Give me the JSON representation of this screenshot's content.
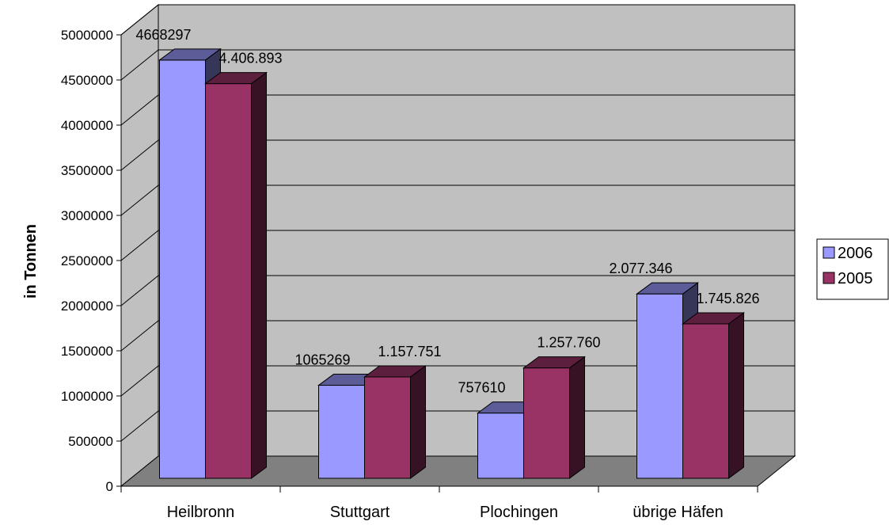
{
  "chart_data": {
    "type": "bar",
    "three_d": true,
    "categories": [
      "Heilbronn",
      "Stuttgart",
      "Plochingen",
      "übrige Häfen"
    ],
    "series": [
      {
        "name": "2006",
        "color": "#9999ff",
        "values": [
          4668297,
          1065269,
          757610,
          2077346
        ],
        "data_labels": [
          "4668297",
          "1065269",
          "757610",
          "2.077.346"
        ]
      },
      {
        "name": "2005",
        "color": "#993366",
        "values": [
          4406893,
          1157751,
          1257760,
          1745826
        ],
        "data_labels": [
          "4.406.893",
          "1.157.751",
          "1.257.760",
          "1.745.826"
        ]
      }
    ],
    "y_ticks": [
      "0",
      "500000",
      "1000000",
      "1500000",
      "2000000",
      "2500000",
      "3000000",
      "3500000",
      "4000000",
      "4500000",
      "5000000"
    ],
    "ylim": [
      0,
      5000000
    ],
    "ylabel": "in Tonnen",
    "xlabel": "",
    "title": "",
    "grid": true,
    "legend_position": "right",
    "wall_color": "#c0c0c0",
    "floor_color": "#808080"
  }
}
